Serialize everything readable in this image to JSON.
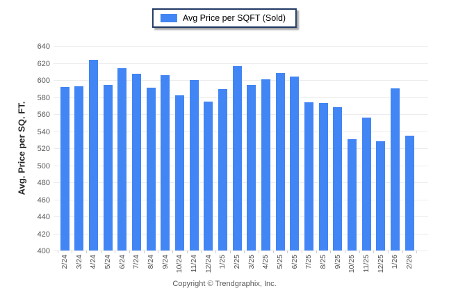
{
  "legend": {
    "label": "Avg Price per SQFT (Sold)",
    "swatch_color": "#4285f4"
  },
  "y_axis": {
    "title": "Avg. Price per SQ. FT.",
    "ticks": [
      400,
      420,
      440,
      460,
      480,
      500,
      520,
      540,
      560,
      580,
      600,
      620,
      640
    ]
  },
  "chart_data": {
    "type": "bar",
    "title": "Avg Price per SQFT (Sold)",
    "ylabel": "Avg. Price per SQ. FT.",
    "xlabel": "",
    "ylim": [
      400,
      640
    ],
    "y_tick_step": 20,
    "grid": true,
    "legend_position": "top-center",
    "bar_color": "#4285f4",
    "categories": [
      "2/24",
      "3/24",
      "4/24",
      "5/24",
      "6/24",
      "7/24",
      "8/24",
      "9/24",
      "10/24",
      "11/24",
      "12/24",
      "1/25",
      "2/25",
      "3/25",
      "4/25",
      "5/25",
      "6/25",
      "7/25",
      "8/25",
      "9/25",
      "10/25",
      "11/25",
      "12/25",
      "1/26",
      "2/26"
    ],
    "values": [
      592,
      593,
      624,
      594,
      614,
      607,
      591,
      606,
      582,
      600,
      575,
      589,
      616,
      594,
      601,
      608,
      604,
      574,
      573,
      568,
      531,
      556,
      528,
      590,
      535
    ]
  },
  "footer": {
    "copyright": "Copyright © Trendgraphix, Inc."
  }
}
